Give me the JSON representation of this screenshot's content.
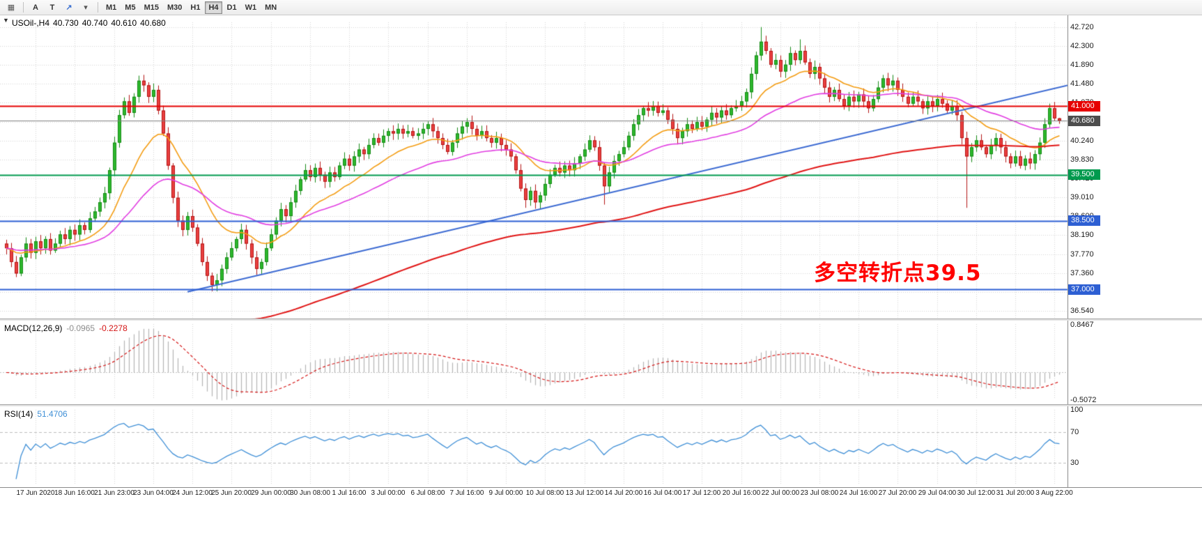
{
  "toolbar": {
    "icons": [
      {
        "name": "chart-template-icon",
        "glyph": "▦",
        "class": "icon"
      },
      {
        "name": "annotate-a-icon",
        "glyph": "A",
        "class": ""
      },
      {
        "name": "text-label-icon",
        "glyph": "T",
        "class": ""
      },
      {
        "name": "draw-tools-icon",
        "glyph": "↗",
        "class": "blue"
      },
      {
        "name": "tools-dropdown-icon",
        "glyph": "▾",
        "class": "icon"
      }
    ],
    "timeframes": [
      {
        "label": "M1",
        "active": false
      },
      {
        "label": "M5",
        "active": false
      },
      {
        "label": "M15",
        "active": false
      },
      {
        "label": "M30",
        "active": false
      },
      {
        "label": "H1",
        "active": false
      },
      {
        "label": "H4",
        "active": true
      },
      {
        "label": "D1",
        "active": false
      },
      {
        "label": "W1",
        "active": false
      },
      {
        "label": "MN",
        "active": false
      }
    ]
  },
  "legend": {
    "collapse_glyph": "▼",
    "symbol_period": "USOil-,H4",
    "open": "40.730",
    "high": "40.740",
    "low": "40.610",
    "close": "40.680"
  },
  "annotation": {
    "text": "多空转折点39.5",
    "color": "#ff0000"
  },
  "price_axis": {
    "grid_labels": [
      "42.720",
      "42.300",
      "41.890",
      "41.480",
      "41.070",
      "40.650",
      "40.240",
      "39.830",
      "39.420",
      "39.010",
      "38.600",
      "38.190",
      "37.770",
      "37.360",
      "36.950",
      "36.540"
    ]
  },
  "tags": {
    "bid": {
      "label": "40.680",
      "price": 40.68,
      "color": "#4d4d4d"
    },
    "levels": [
      {
        "label": "41.000",
        "price": 41.0,
        "color": "#e60000"
      },
      {
        "label": "39.500",
        "price": 39.5,
        "color": "#009a4e"
      },
      {
        "label": "38.500",
        "price": 38.5,
        "color": "#2d5fd3"
      },
      {
        "label": "37.000",
        "price": 37.0,
        "color": "#2d5fd3"
      }
    ]
  },
  "macd_panel": {
    "label": "MACD(12,26,9)",
    "value_main": "-0.0965",
    "value_signal": "-0.2278",
    "axis_max": "0.8467",
    "axis_min": "-0.5072",
    "hist_color": "#b4b4b4",
    "signal_color": "#d41414"
  },
  "rsi_panel": {
    "label": "RSI(14)",
    "value": "51.4706",
    "axis_labels": [
      {
        "text": "100",
        "value": 100
      },
      {
        "text": "70",
        "value": 70
      },
      {
        "text": "30",
        "value": 30
      }
    ],
    "levels": [
      70,
      30
    ],
    "line_color": "#3f8fd6"
  },
  "time_axis": {
    "labels": [
      "17 Jun 2020",
      "18 Jun 16:00",
      "21 Jun 23:00",
      "23 Jun 04:00",
      "24 Jun 12:00",
      "25 Jun 20:00",
      "29 Jun 00:00",
      "30 Jun 08:00",
      "1 Jul 16:00",
      "3 Jul 00:00",
      "6 Jul 08:00",
      "7 Jul 16:00",
      "9 Jul 00:00",
      "10 Jul 08:00",
      "13 Jul 12:00",
      "14 Jul 20:00",
      "16 Jul 04:00",
      "17 Jul 12:00",
      "20 Jul 16:00",
      "22 Jul 00:00",
      "23 Jul 08:00",
      "24 Jul 16:00",
      "27 Jul 20:00",
      "29 Jul 04:00",
      "30 Jul 12:00",
      "31 Jul 20:00",
      "3 Aug 22:00"
    ]
  },
  "chart_data": {
    "type": "candlestick",
    "symbol": "USOil-",
    "timeframe": "H4",
    "title": "USOil-,H4",
    "last_ohlc": {
      "open": 40.73,
      "high": 40.74,
      "low": 40.61,
      "close": 40.68
    },
    "y_range": [
      36.44,
      42.86
    ],
    "levels": [
      41.0,
      39.5,
      38.5,
      37.0
    ],
    "trendline": {
      "from_bar": 37,
      "from_price": 36.95,
      "to_bar": 217,
      "to_price": 41.45,
      "color": "#3c6ad2"
    },
    "candle_colors": {
      "up": "#2db82d",
      "up_border": "#168a16",
      "down": "#ea4040",
      "down_border": "#b31414"
    },
    "moving_averages": [
      {
        "period": 16,
        "color": "#f39c12",
        "seed": null
      },
      {
        "period": 40,
        "color": "#e13ee1",
        "seed": null
      },
      {
        "period": 150,
        "color": "#e01515",
        "seed": 34.0
      }
    ],
    "indicators": [
      {
        "name": "MACD",
        "params": [
          12,
          26,
          9
        ],
        "values": [
          -0.0965,
          -0.2278
        ]
      },
      {
        "name": "RSI",
        "params": [
          14
        ],
        "value": 51.4706
      }
    ],
    "first_open": 38.0,
    "closes": [
      37.9,
      37.6,
      37.35,
      37.7,
      38.0,
      37.8,
      38.05,
      37.9,
      38.1,
      37.85,
      38.0,
      38.2,
      38.1,
      38.3,
      38.2,
      38.4,
      38.3,
      38.55,
      38.7,
      38.9,
      39.1,
      39.6,
      40.2,
      40.8,
      41.1,
      40.85,
      41.2,
      41.55,
      41.45,
      41.2,
      41.35,
      40.9,
      40.4,
      39.7,
      39.0,
      38.5,
      38.3,
      38.6,
      38.35,
      38.0,
      37.6,
      37.3,
      37.1,
      37.2,
      37.45,
      37.7,
      37.9,
      38.1,
      38.3,
      38.0,
      37.7,
      37.45,
      37.6,
      37.9,
      38.2,
      38.5,
      38.75,
      38.6,
      38.9,
      39.15,
      39.4,
      39.6,
      39.45,
      39.65,
      39.5,
      39.35,
      39.55,
      39.45,
      39.7,
      39.85,
      39.7,
      39.9,
      40.05,
      39.95,
      40.15,
      40.3,
      40.2,
      40.35,
      40.45,
      40.4,
      40.5,
      40.4,
      40.45,
      40.35,
      40.4,
      40.5,
      40.6,
      40.45,
      40.3,
      40.15,
      40.0,
      40.2,
      40.4,
      40.55,
      40.65,
      40.5,
      40.35,
      40.45,
      40.3,
      40.2,
      40.3,
      40.15,
      40.05,
      39.9,
      39.6,
      39.2,
      38.95,
      39.15,
      38.9,
      39.05,
      39.3,
      39.5,
      39.65,
      39.55,
      39.7,
      39.6,
      39.75,
      39.9,
      40.05,
      40.25,
      40.1,
      39.7,
      39.25,
      39.55,
      39.8,
      39.95,
      40.1,
      40.35,
      40.6,
      40.8,
      40.95,
      40.9,
      41.0,
      40.85,
      40.9,
      40.7,
      40.5,
      40.3,
      40.45,
      40.6,
      40.5,
      40.65,
      40.55,
      40.7,
      40.85,
      40.75,
      40.9,
      40.8,
      40.95,
      41.0,
      41.1,
      41.3,
      41.7,
      42.1,
      42.4,
      42.2,
      41.9,
      42.0,
      41.75,
      41.9,
      42.15,
      42.0,
      42.2,
      41.95,
      41.7,
      41.85,
      41.6,
      41.4,
      41.2,
      41.35,
      41.15,
      41.0,
      41.2,
      41.1,
      41.25,
      41.1,
      40.95,
      41.15,
      41.4,
      41.6,
      41.45,
      41.55,
      41.35,
      41.2,
      41.05,
      41.2,
      41.1,
      40.95,
      41.1,
      41.0,
      41.15,
      41.05,
      40.9,
      41.0,
      40.8,
      40.3,
      39.9,
      40.1,
      40.25,
      40.1,
      39.95,
      40.15,
      40.3,
      40.1,
      39.9,
      39.75,
      39.9,
      39.7,
      39.85,
      39.75,
      39.95,
      40.2,
      40.6,
      40.95,
      40.73,
      40.68
    ],
    "wick_overrides": {
      "27": {
        "h": 41.66
      },
      "42": {
        "l": 36.96
      },
      "106": {
        "l": 38.78
      },
      "122": {
        "l": 38.85
      },
      "154": {
        "h": 42.72
      },
      "162": {
        "h": 42.45
      },
      "196": {
        "l": 38.78
      },
      "213": {
        "h": 41.05
      }
    }
  }
}
